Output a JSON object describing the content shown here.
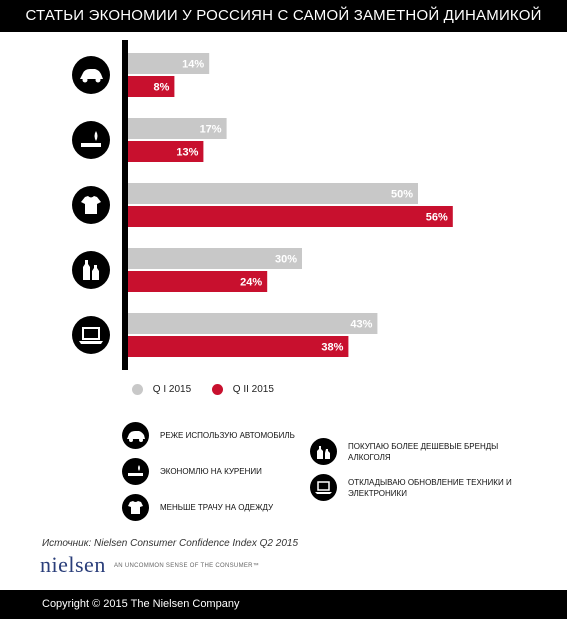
{
  "header": {
    "title": "СТАТЬИ ЭКОНОМИИ У РОССИЯН С САМОЙ ЗАМЕТНОЙ ДИНАМИКОЙ"
  },
  "chart_data": {
    "type": "bar",
    "orientation": "horizontal",
    "title": "СТАТЬИ ЭКОНОМИИ У РОССИЯН С САМОЙ ЗАМЕТНОЙ ДИНАМИКОЙ",
    "categories": [
      "car-icon",
      "smoking-icon",
      "tshirt-icon",
      "bottles-icon",
      "laptop-icon"
    ],
    "category_labels": [
      "РЕЖЕ ИСПОЛЬЗУЮ АВТОМОБИЛЬ",
      "ЭКОНОМЛЮ НА КУРЕНИИ",
      "МЕНЬШЕ ТРАЧУ НА ОДЕЖДУ",
      "ПОКУПАЮ БОЛЕЕ ДЕШЕВЫЕ БРЕНДЫ АЛКОГОЛЯ",
      "ОТКЛАДЫВАЮ ОБНОВЛЕНИЕ ТЕХНИКИ И ЭЛЕКТРОНИКИ"
    ],
    "series": [
      {
        "name": "Q I 2015",
        "color": "#c8c8c8",
        "values": [
          14,
          17,
          50,
          30,
          43
        ],
        "labels": [
          "14%",
          "17%",
          "50%",
          "30%",
          "43%"
        ]
      },
      {
        "name": "Q II 2015",
        "color": "#c8102e",
        "values": [
          8,
          13,
          56,
          24,
          38
        ],
        "labels": [
          "8%",
          "13%",
          "56%",
          "24%",
          "38%"
        ]
      }
    ],
    "xlim": [
      0,
      60
    ],
    "grid": false,
    "legend_placement": "bottom"
  },
  "legend": {
    "q1": "Q I 2015",
    "q2": "Q II 2015"
  },
  "key": {
    "car": "РЕЖЕ ИСПОЛЬЗУЮ АВТОМОБИЛЬ",
    "smoking": "ЭКОНОМЛЮ НА КУРЕНИИ",
    "clothes": "МЕНЬШЕ ТРАЧУ НА ОДЕЖДУ",
    "alcohol": "ПОКУПАЮ БОЛЕЕ ДЕШЕВЫЕ БРЕНДЫ АЛКОГОЛЯ",
    "tech": "ОТКЛАДЫВАЮ ОБНОВЛЕНИЕ ТЕХНИКИ И ЭЛЕКТРОНИКИ"
  },
  "source": "Источник: Nielsen Consumer Confidence Index Q2 2015",
  "brand": {
    "name": "nielsen",
    "tagline": "AN UNCOMMON SENSE OF THE CONSUMER™"
  },
  "footer": {
    "copyright": "Copyright © 2015 The Nielsen Company"
  }
}
